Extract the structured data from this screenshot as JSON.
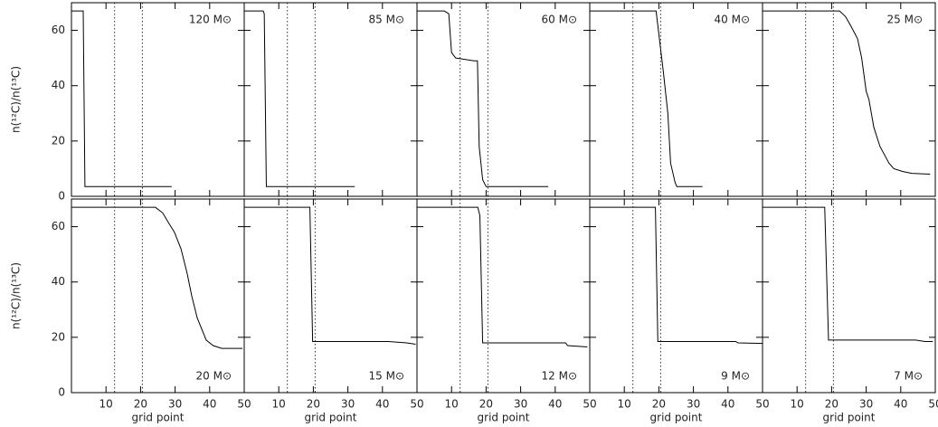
{
  "chart_data": [
    {
      "type": "line",
      "annotation": "120 M⊙",
      "ylabel": "n(¹²C)/n(¹³C)",
      "color": "#000000",
      "x": [
        0,
        3.4,
        3.9,
        29
      ],
      "values": [
        67,
        67,
        3.5,
        3.5
      ],
      "vlines": [
        12.5,
        20.5
      ],
      "xlim": [
        0,
        50
      ],
      "ylim": [
        0,
        70
      ],
      "xticks": [
        10,
        20,
        30,
        40,
        50
      ],
      "yticks": [
        0,
        20,
        40,
        60
      ]
    },
    {
      "type": "line",
      "annotation": "85 M⊙",
      "color": "#000000",
      "x": [
        0,
        5.5,
        5.8,
        6.4,
        32
      ],
      "values": [
        67,
        67,
        66,
        3.5,
        3.5
      ],
      "vlines": [
        12.5,
        20.5
      ],
      "xlim": [
        0,
        50
      ],
      "ylim": [
        0,
        70
      ],
      "xticks": [
        10,
        20,
        30,
        40,
        50
      ],
      "yticks": [
        0,
        20,
        40,
        60
      ]
    },
    {
      "type": "line",
      "annotation": "60 M⊙",
      "color": "#000000",
      "x": [
        0,
        7.9,
        9.2,
        10,
        11.2,
        16.5,
        17.5,
        18,
        19,
        20,
        38
      ],
      "values": [
        67,
        67,
        66,
        52,
        50,
        49,
        49,
        18,
        6,
        3.5,
        3.5
      ],
      "vlines": [
        12.5,
        20.5
      ],
      "xlim": [
        0,
        50
      ],
      "ylim": [
        0,
        70
      ],
      "xticks": [
        10,
        20,
        30,
        40,
        50
      ],
      "yticks": [
        0,
        20,
        40,
        60
      ]
    },
    {
      "type": "line",
      "annotation": "40 M⊙",
      "color": "#000000",
      "x": [
        0,
        19.2,
        21.3,
        22.6,
        23.4,
        24.7,
        25.2,
        32.6
      ],
      "values": [
        67,
        67,
        45,
        30,
        12,
        5,
        3.5,
        3.5
      ],
      "vlines": [
        12.5,
        20.5
      ],
      "xlim": [
        0,
        50
      ],
      "ylim": [
        0,
        70
      ],
      "xticks": [
        10,
        20,
        30,
        40,
        50
      ],
      "yticks": [
        0,
        20,
        40,
        60
      ]
    },
    {
      "type": "line",
      "annotation": "25 M⊙",
      "color": "#000000",
      "x": [
        0,
        22.3,
        24,
        25.4,
        27.5,
        28.7,
        30,
        30.8,
        32.2,
        34,
        36.6,
        38,
        40.5,
        43.2,
        48.5
      ],
      "values": [
        67,
        67,
        65,
        62,
        57,
        50,
        38,
        35,
        25,
        18,
        12,
        10,
        9,
        8.3,
        8
      ],
      "vlines": [
        12.5,
        20.5
      ],
      "xlim": [
        0,
        50
      ],
      "ylim": [
        0,
        70
      ],
      "xticks": [
        10,
        20,
        30,
        40,
        50
      ],
      "yticks": [
        0,
        20,
        40,
        60
      ]
    },
    {
      "type": "line",
      "annotation": "20 M⊙",
      "ylabel": "n(¹²C)/n(¹³C)",
      "xlabel": "grid point",
      "color": "#000000",
      "x": [
        0,
        24.3,
        26.4,
        28.3,
        29.8,
        31.7,
        33.5,
        34.8,
        36.4,
        39,
        41,
        43.5,
        49.5
      ],
      "values": [
        67,
        67,
        65,
        61,
        58,
        52,
        43,
        35,
        27,
        19,
        17,
        16,
        16
      ],
      "vlines": [
        12.5,
        20.5
      ],
      "xlim": [
        0,
        50
      ],
      "ylim": [
        0,
        70
      ],
      "xticks": [
        10,
        20,
        30,
        40,
        50
      ],
      "yticks": [
        0,
        20,
        40,
        60
      ]
    },
    {
      "type": "line",
      "annotation": "15 M⊙",
      "xlabel": "grid point",
      "color": "#000000",
      "x": [
        0,
        19,
        19.8,
        41.7,
        47,
        49.6
      ],
      "values": [
        67,
        67,
        18.5,
        18.5,
        18,
        17.5
      ],
      "vlines": [
        12.5,
        20.5
      ],
      "xlim": [
        0,
        50
      ],
      "ylim": [
        0,
        70
      ],
      "xticks": [
        10,
        20,
        30,
        40,
        50
      ],
      "yticks": [
        0,
        20,
        40,
        60
      ]
    },
    {
      "type": "line",
      "annotation": "12 M⊙",
      "xlabel": "grid point",
      "color": "#000000",
      "x": [
        0,
        17.6,
        18.2,
        19,
        43,
        43.6,
        49.3
      ],
      "values": [
        67,
        67,
        64,
        18,
        18,
        17,
        16.5
      ],
      "vlines": [
        12.5,
        20.5
      ],
      "xlim": [
        0,
        50
      ],
      "ylim": [
        0,
        70
      ],
      "xticks": [
        10,
        20,
        30,
        40,
        50
      ],
      "yticks": [
        0,
        20,
        40,
        60
      ]
    },
    {
      "type": "line",
      "annotation": "9 M⊙",
      "xlabel": "grid point",
      "color": "#000000",
      "x": [
        0,
        19,
        19.7,
        42.2,
        42.9,
        50
      ],
      "values": [
        67,
        67,
        18.5,
        18.5,
        18,
        17.8
      ],
      "vlines": [
        12.5,
        20.5
      ],
      "xlim": [
        0,
        50
      ],
      "ylim": [
        0,
        70
      ],
      "xticks": [
        10,
        20,
        30,
        40,
        50
      ],
      "yticks": [
        0,
        20,
        40,
        60
      ]
    },
    {
      "type": "line",
      "annotation": "7 M⊙",
      "xlabel": "grid point",
      "color": "#000000",
      "x": [
        0,
        18,
        19.1,
        44.3,
        47,
        49.3
      ],
      "values": [
        67,
        67,
        19,
        19,
        18.5,
        18.5
      ],
      "vlines": [
        12.5,
        20.5
      ],
      "xlim": [
        0,
        50
      ],
      "ylim": [
        0,
        70
      ],
      "xticks": [
        10,
        20,
        30,
        40,
        50
      ],
      "yticks": [
        0,
        20,
        40,
        60
      ]
    }
  ]
}
